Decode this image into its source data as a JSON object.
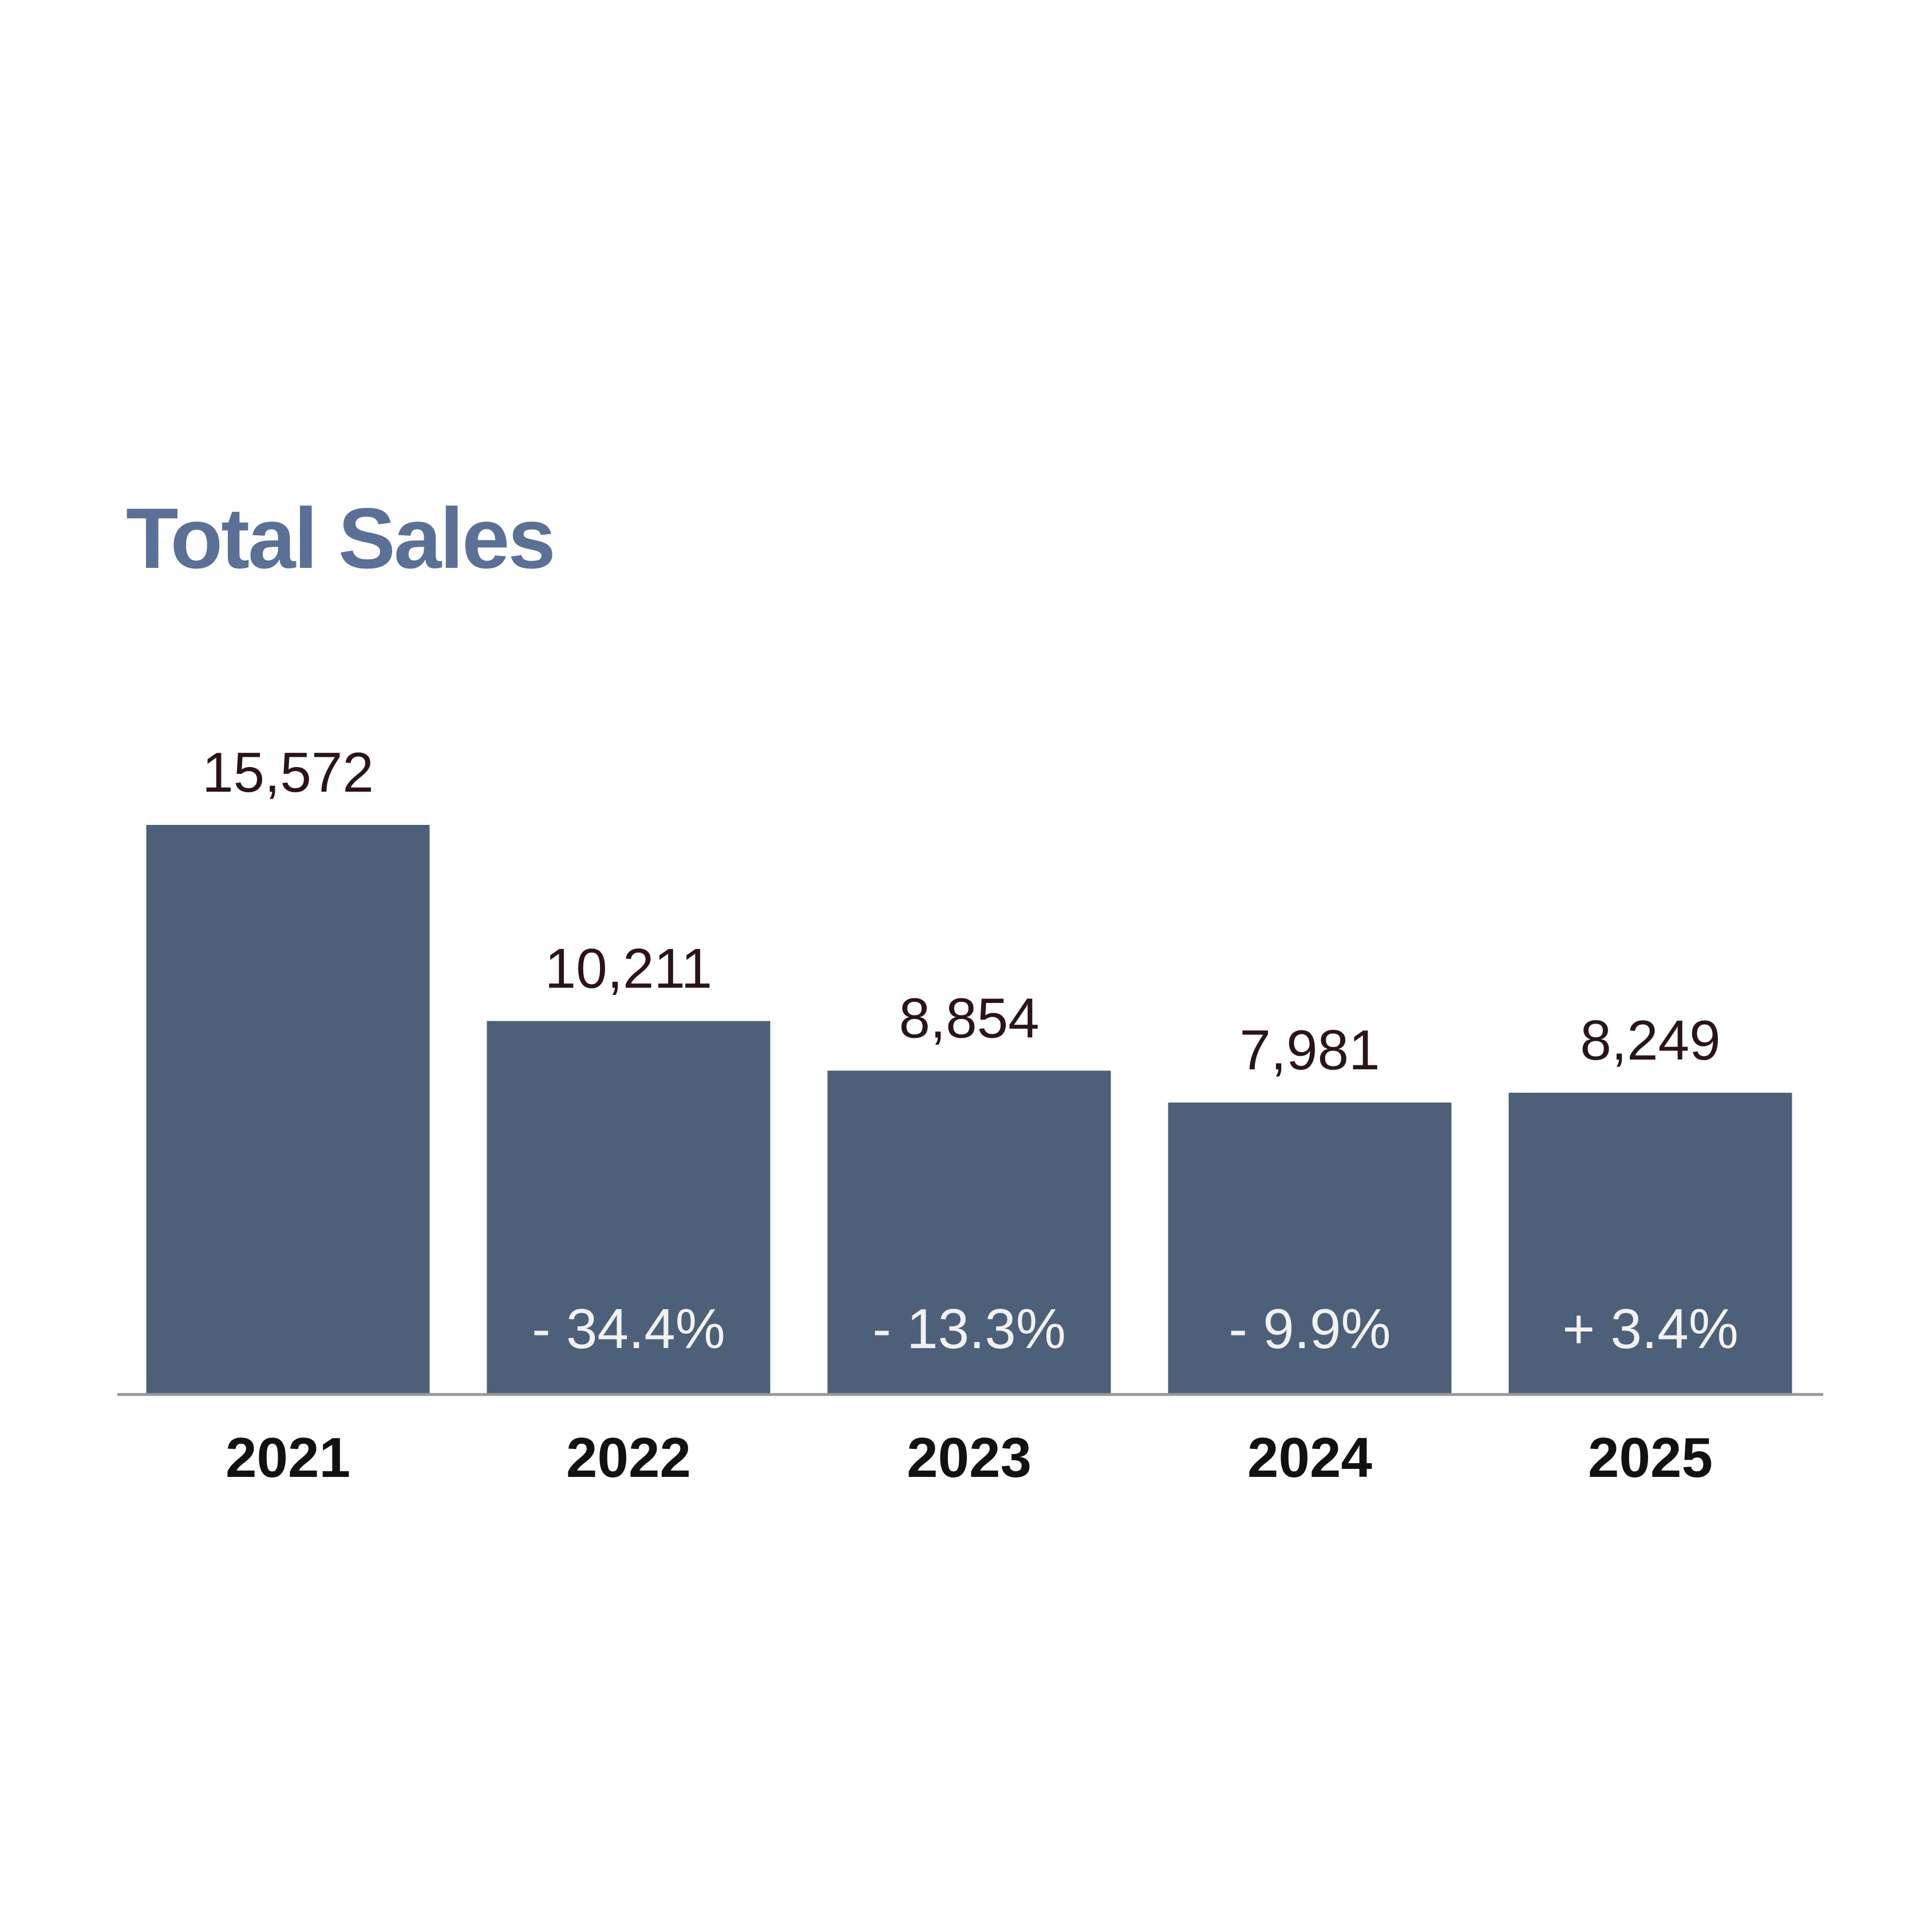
{
  "chart_data": {
    "type": "bar",
    "title": "Total Sales",
    "categories": [
      "2021",
      "2022",
      "2023",
      "2024",
      "2025"
    ],
    "values": [
      15572,
      10211,
      8854,
      7981,
      8249
    ],
    "value_labels": [
      "15,572",
      "10,211",
      "8,854",
      "7,981",
      "8,249"
    ],
    "change_labels": [
      "",
      "- 34.4%",
      "- 13.3%",
      "- 9.9%",
      "+ 3.4%"
    ],
    "xlabel": "",
    "ylabel": "",
    "ylim": [
      0,
      15572
    ],
    "grid": false,
    "legend": "none"
  },
  "colors": {
    "bar": "#4d6079",
    "title": "#5a7096",
    "value_label": "#2a1418",
    "change_label": "#f2f2f2",
    "year_label": "#111111",
    "baseline": "#999999"
  }
}
